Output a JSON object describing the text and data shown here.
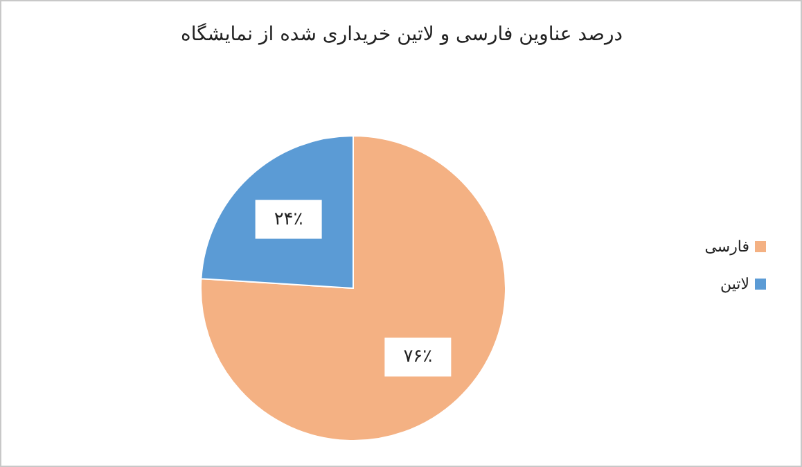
{
  "chart_data": {
    "type": "pie",
    "title": "درصد عناوین فارسی و لاتین خریداری شده از نمایشگاه",
    "categories": [
      "فارسی",
      "لاتین"
    ],
    "values": [
      76,
      24
    ],
    "colors": [
      "#f4b183",
      "#5b9bd5"
    ],
    "value_labels": [
      "۷۶٪",
      "۲۴٪"
    ],
    "legend": "right"
  }
}
